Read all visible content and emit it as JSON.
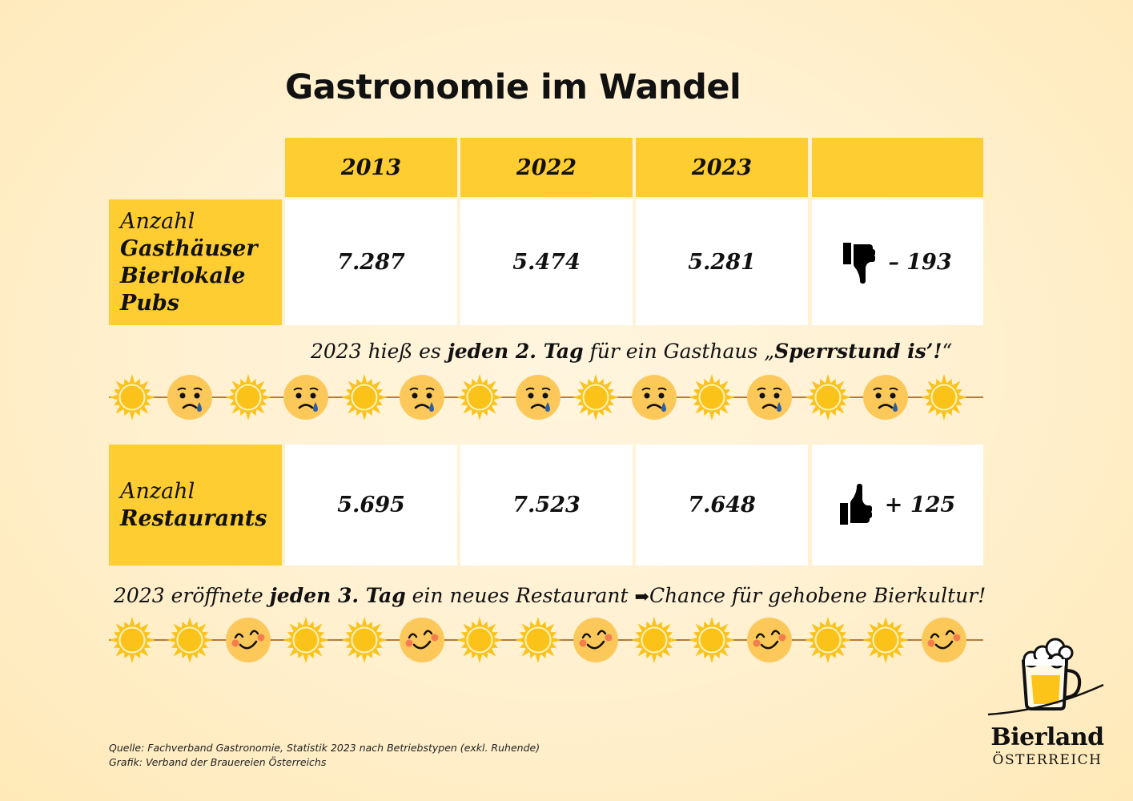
{
  "title": "Gastronomie im Wandel",
  "table": {
    "columns": [
      "2013",
      "2022",
      "2023",
      ""
    ],
    "rows": [
      {
        "label_prefix": "Anzahl",
        "label_lines": [
          "Gasthäuser",
          "Bierlokale",
          "Pubs"
        ],
        "values": [
          "7.287",
          "5.474",
          "5.281"
        ],
        "trend_icon": "thumbs-down-icon",
        "delta": "– 193"
      },
      {
        "label_prefix": "Anzahl",
        "label_lines": [
          "Restaurants"
        ],
        "values": [
          "5.695",
          "7.523",
          "7.648"
        ],
        "trend_icon": "thumbs-up-icon",
        "delta": "+ 125"
      }
    ]
  },
  "captions": {
    "gasthaus": {
      "part1": "2023 hieß es ",
      "bold1": "jeden 2. Tag",
      "part2": " für ein Gasthaus „",
      "bold2": "Sperrstund is’!",
      "part3": "“"
    },
    "restaurant": {
      "part1": "2023 eröffnete ",
      "bold1": "jeden 3. Tag",
      "part2": " ein neues Restaurant ",
      "arrow": "➡",
      "part3": "Chance für gehobene Bierkultur!"
    }
  },
  "timelines": {
    "gasthaus": [
      "sun",
      "sad",
      "sun",
      "sad",
      "sun",
      "sad",
      "sun",
      "sad",
      "sun",
      "sad",
      "sun",
      "sad",
      "sun",
      "sad",
      "sun"
    ],
    "restaurant": [
      "sun",
      "sun",
      "happy",
      "sun",
      "sun",
      "happy",
      "sun",
      "sun",
      "happy",
      "sun",
      "sun",
      "happy",
      "sun",
      "sun",
      "happy"
    ]
  },
  "source": {
    "line1": "Quelle: Fachverband Gastronomie, Statistik 2023 nach Betriebstypen (exkl. Ruhende)",
    "line2": "Grafik: Verband der Brauereien Österreichs"
  },
  "logo": {
    "name": "Bierland",
    "subtitle": "ÖSTERREICH"
  },
  "colors": {
    "accent_yellow": "#fecd32",
    "cell_white": "#ffffff",
    "track_brown": "#b8793a",
    "sun": "#fbc21a",
    "face": "#fcc85a",
    "tear": "#2f5fa8",
    "blush": "#f06a4a"
  },
  "chart_data": {
    "type": "table",
    "title": "Gastronomie im Wandel",
    "categories": [
      "2013",
      "2022",
      "2023"
    ],
    "series": [
      {
        "name": "Anzahl Gasthäuser / Bierlokale / Pubs",
        "values": [
          7287,
          5474,
          5281
        ],
        "change_2022_2023": -193
      },
      {
        "name": "Anzahl Restaurants",
        "values": [
          5695,
          7523,
          7648
        ],
        "change_2022_2023": 125
      }
    ],
    "annotations": [
      "2023 hieß es jeden 2. Tag für ein Gasthaus „Sperrstund is’!“",
      "2023 eröffnete jeden 3. Tag ein neues Restaurant ➡ Chance für gehobene Bierkultur!"
    ],
    "source": "Quelle: Fachverband Gastronomie, Statistik 2023 nach Betriebstypen (exkl. Ruhende)"
  }
}
